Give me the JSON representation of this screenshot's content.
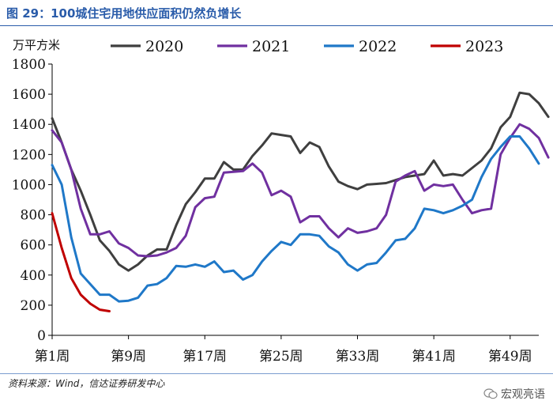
{
  "figure": {
    "title": "图 29：100城住宅用地供应面积仍然负增长",
    "source": "资料来源：Wind，信达证券研发中心",
    "watermark": "宏观亮语"
  },
  "chart_data": {
    "type": "line",
    "title": "图 29：100城住宅用地供应面积仍然负增长",
    "ylabel": "万平方米",
    "xlabel": "",
    "ylim": [
      0,
      1800
    ],
    "yticks": [
      0,
      200,
      400,
      600,
      800,
      1000,
      1200,
      1400,
      1600,
      1800
    ],
    "xlim": [
      1,
      52
    ],
    "xticks": [
      {
        "week": 1,
        "label": "第1周"
      },
      {
        "week": 9,
        "label": "第9周"
      },
      {
        "week": 17,
        "label": "第17周"
      },
      {
        "week": 25,
        "label": "第25周"
      },
      {
        "week": 33,
        "label": "第33周"
      },
      {
        "week": 41,
        "label": "第41周"
      },
      {
        "week": 49,
        "label": "第49周"
      }
    ],
    "legend_position": "top",
    "grid": false,
    "series": [
      {
        "name": "2020",
        "color": "#3f3f3f",
        "values": [
          1440,
          1280,
          1100,
          960,
          800,
          630,
          560,
          470,
          430,
          470,
          530,
          570,
          570,
          730,
          870,
          950,
          1040,
          1040,
          1150,
          1100,
          1100,
          1190,
          1260,
          1340,
          1330,
          1320,
          1210,
          1280,
          1250,
          1120,
          1020,
          990,
          970,
          1000,
          1005,
          1010,
          1030,
          1050,
          1060,
          1070,
          1160,
          1060,
          1070,
          1060,
          1110,
          1160,
          1240,
          1380,
          1450,
          1610,
          1600,
          1540,
          1450
        ]
      },
      {
        "name": "2021",
        "color": "#7030a0",
        "values": [
          1360,
          1280,
          1100,
          840,
          670,
          670,
          690,
          610,
          580,
          530,
          525,
          530,
          550,
          580,
          660,
          850,
          910,
          920,
          1080,
          1085,
          1090,
          1140,
          1080,
          930,
          960,
          920,
          750,
          790,
          790,
          710,
          650,
          710,
          680,
          690,
          710,
          800,
          1020,
          1060,
          1090,
          960,
          1000,
          990,
          1000,
          900,
          810,
          830,
          840,
          1200,
          1310,
          1400,
          1370,
          1310,
          1180
        ]
      },
      {
        "name": "2022",
        "color": "#1f78c8",
        "values": [
          1130,
          1000,
          650,
          410,
          340,
          270,
          270,
          225,
          230,
          250,
          330,
          340,
          380,
          460,
          455,
          470,
          455,
          490,
          420,
          430,
          370,
          400,
          490,
          560,
          620,
          600,
          670,
          670,
          660,
          590,
          550,
          470,
          430,
          470,
          480,
          550,
          630,
          640,
          710,
          840,
          830,
          810,
          830,
          860,
          900,
          1050,
          1170,
          1250,
          1320,
          1320,
          1240,
          1140
        ]
      },
      {
        "name": "2023",
        "color": "#c00000",
        "values": [
          810,
          580,
          380,
          270,
          210,
          170,
          160
        ]
      }
    ]
  }
}
